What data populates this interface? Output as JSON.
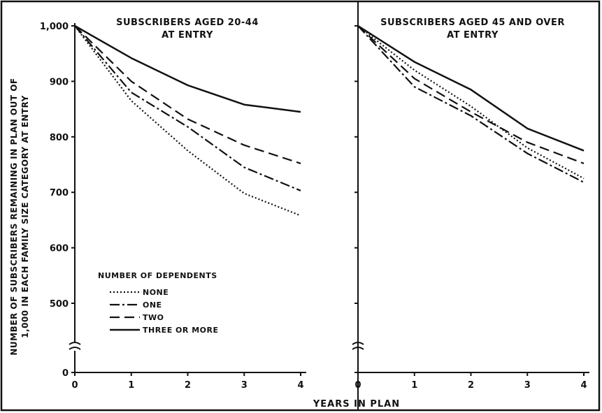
{
  "chart_data": {
    "type": "line",
    "xlabel": "YEARS IN PLAN",
    "ylabel_lines": [
      "NUMBER OF SUBSCRIBERS REMAINING IN PLAN OUT OF",
      "1,000 IN EACH FAMILY SIZE CATEGORY AT ENTRY"
    ],
    "x_ticks": [
      "0",
      "1",
      "2",
      "3",
      "4"
    ],
    "y_ticks": [
      "0",
      "500",
      "600",
      "700",
      "800",
      "900",
      "1,000"
    ],
    "y_axis_break": "500 to 0",
    "legend": {
      "title": "NUMBER OF DEPENDENTS",
      "placement": "lower-left of left panel",
      "entries": [
        {
          "name": "NONE",
          "style": "dotted"
        },
        {
          "name": "ONE",
          "style": "dash-dot"
        },
        {
          "name": "TWO",
          "style": "dashed"
        },
        {
          "name": "THREE OR MORE",
          "style": "solid"
        }
      ]
    },
    "panels": [
      {
        "title_lines": [
          "SUBSCRIBERS AGED 20-44",
          "AT ENTRY"
        ],
        "x": [
          0,
          1,
          2,
          3,
          4
        ],
        "ylim": [
          400,
          1000
        ],
        "series": [
          {
            "name": "NONE",
            "style": "dotted",
            "values": [
              1000,
              865,
              775,
              698,
              658
            ]
          },
          {
            "name": "ONE",
            "style": "dash-dot",
            "values": [
              1000,
              880,
              818,
              745,
              703
            ]
          },
          {
            "name": "TWO",
            "style": "dashed",
            "values": [
              1000,
              900,
              832,
              785,
              752
            ]
          },
          {
            "name": "THREE OR MORE",
            "style": "solid",
            "values": [
              1000,
              942,
              893,
              858,
              845
            ]
          }
        ]
      },
      {
        "title_lines": [
          "SUBSCRIBERS AGED 45 AND OVER",
          "AT ENTRY"
        ],
        "x": [
          0,
          1,
          2,
          3,
          4
        ],
        "ylim": [
          400,
          1000
        ],
        "series": [
          {
            "name": "NONE",
            "style": "dotted",
            "values": [
              1000,
              920,
              855,
              780,
              725
            ]
          },
          {
            "name": "ONE",
            "style": "dash-dot",
            "values": [
              1000,
              890,
              838,
              770,
              718
            ]
          },
          {
            "name": "TWO",
            "style": "dashed",
            "values": [
              1000,
              905,
              845,
              790,
              752
            ]
          },
          {
            "name": "THREE OR MORE",
            "style": "solid",
            "values": [
              1000,
              935,
              885,
              815,
              775
            ]
          }
        ]
      }
    ]
  }
}
